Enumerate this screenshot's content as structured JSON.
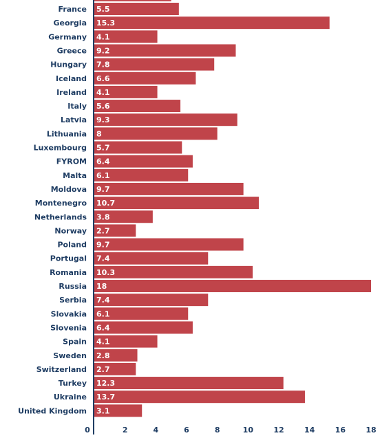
{
  "chart_data": {
    "type": "bar",
    "orientation": "horizontal",
    "title": "",
    "xlabel": "",
    "ylabel": "",
    "xlim": [
      0,
      18
    ],
    "x_ticks": [
      "0",
      "2",
      "4",
      "6",
      "8",
      "10",
      "12",
      "14",
      "16",
      "18"
    ],
    "grid": false,
    "categories": [
      "France",
      "Georgia",
      "Germany",
      "Greece",
      "Hungary",
      "Iceland",
      "Ireland",
      "Italy",
      "Latvia",
      "Lithuania",
      "Luxembourg",
      "FYROM",
      "Malta",
      "Moldova",
      "Montenegro",
      "Netherlands",
      "Norway",
      "Poland",
      "Portugal",
      "Romania",
      "Russia",
      "Serbia",
      "Slovakia",
      "Slovenia",
      "Spain",
      "Sweden",
      "Switzerland",
      "Turkey",
      "Ukraine",
      "United Kingdom"
    ],
    "values": [
      5.5,
      15.3,
      4.1,
      9.2,
      7.8,
      6.6,
      4.1,
      5.6,
      9.3,
      8,
      5.7,
      6.4,
      6.1,
      9.7,
      10.7,
      3.8,
      2.7,
      9.7,
      7.4,
      10.3,
      18,
      7.4,
      6.1,
      6.4,
      4.1,
      2.8,
      2.7,
      12.3,
      13.7,
      3.1
    ],
    "value_labels": [
      "5.5",
      "15.3",
      "4.1",
      "9.2",
      "7.8",
      "6.6",
      "4.1",
      "5.6",
      "9.3",
      "8",
      "5.7",
      "6.4",
      "6.1",
      "9.7",
      "10.7",
      "3.8",
      "2.7",
      "9.7",
      "7.4",
      "10.3",
      "18",
      "7.4",
      "6.1",
      "6.4",
      "4.1",
      "2.8",
      "2.7",
      "12.3",
      "13.7",
      "3.1"
    ],
    "colors": {
      "bar": "#c0444a",
      "bar_edge": "#9e3339",
      "axis": "#1f3d63",
      "text": "#1f3d63",
      "value_text": "#ffffff",
      "background": "#ffffff"
    }
  }
}
